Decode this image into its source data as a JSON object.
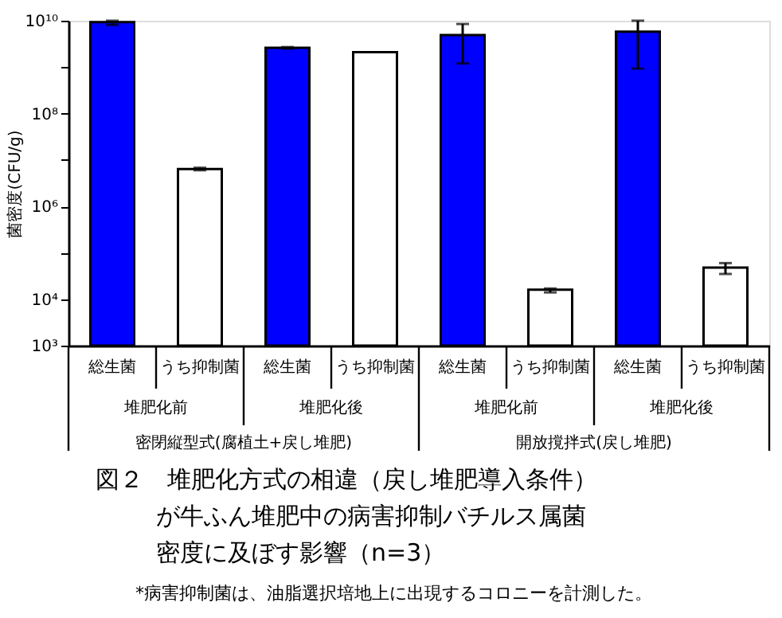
{
  "chart_data": {
    "type": "bar",
    "title": "図２　堆肥化方式の相違（戻し堆肥導入条件）が牛ふん堆肥中の病害抑制バチルス属菌密度に及ぼす影響（n=3）",
    "ylabel": "菌密度(CFU/g)",
    "categories": [
      "総生菌",
      "うち抑制菌",
      "総生菌",
      "うち抑制菌",
      "総生菌",
      "うち抑制菌",
      "総生菌",
      "うち抑制菌"
    ],
    "values": [
      9300000000.0,
      6400000.0,
      2600000000.0,
      2100000000.0,
      4900000000.0,
      16000.0,
      5800000000.0,
      48000.0
    ],
    "colors": [
      "#0000ff",
      "#ffffff",
      "#0000ff",
      "#ffffff",
      "#0000ff",
      "#ffffff",
      "#0000ff",
      "#ffffff"
    ],
    "errors": [
      [
        8100000000.0,
        10000000000.0
      ],
      [
        6000000.0,
        6800000.0
      ],
      [
        2500000000.0,
        2700000000.0
      ],
      null,
      [
        1200000000.0,
        8500000000.0
      ],
      [
        14000.0,
        17000.0
      ],
      [
        930000000.0,
        10000000000.0
      ],
      [
        35000.0,
        60000.0
      ]
    ],
    "log": true,
    "ylim": [
      1000,
      10000000000
    ],
    "yticks": [
      {
        "value": 1000,
        "label": "10³"
      },
      {
        "value": 10000,
        "label": "10⁴"
      },
      {
        "value": 100000,
        "label": null
      },
      {
        "value": 1000000,
        "label": "10⁶"
      },
      {
        "value": 10000000,
        "label": null
      },
      {
        "value": 100000000,
        "label": "10⁸"
      },
      {
        "value": 1000000000,
        "label": null
      },
      {
        "value": 10000000000,
        "label": "10¹⁰"
      }
    ],
    "grid": false,
    "annotations": [
      "堆肥化前",
      "堆肥化後",
      "堆肥化前",
      "堆肥化後",
      "密閉縦型式(腐植土+戻し堆肥)",
      "開放撹拌式(戻し堆肥)",
      "*病害抑制菌は、油脂選択培地上に出現するコロニーを計測した。"
    ]
  }
}
